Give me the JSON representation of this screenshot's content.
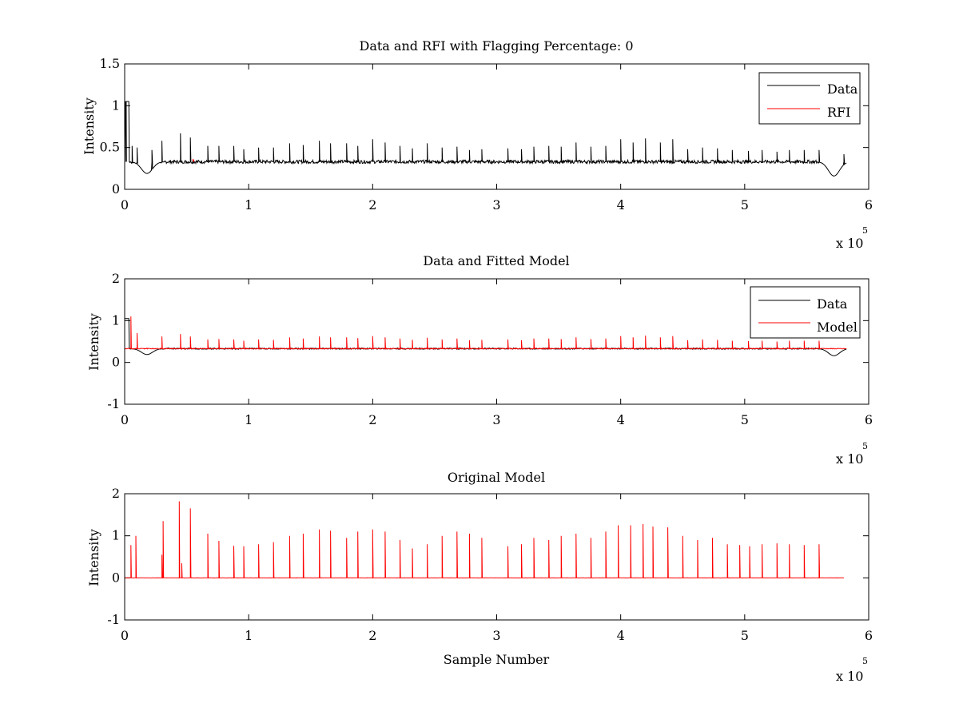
{
  "chart_data": [
    {
      "type": "line",
      "title": "Data and RFI with Flagging Percentage: 0",
      "xlabel": "",
      "ylabel": "Intensity",
      "xlim": [
        0,
        6
      ],
      "ylim": [
        0,
        1.5
      ],
      "x_ticks": [
        "0",
        "1",
        "2",
        "3",
        "4",
        "5",
        "6"
      ],
      "y_ticks": [
        "0",
        "0.5",
        "1",
        "1.5"
      ],
      "x_multiplier": {
        "base": "x 10",
        "exponent": "5"
      },
      "legend": {
        "position": "top-right",
        "entries": [
          "Data",
          "RFI"
        ]
      },
      "colors": {
        "Data": "#000000",
        "RFI": "#ff0000"
      },
      "baseline": 0.33,
      "spike_x": [
        0.01,
        0.06,
        0.1,
        0.22,
        0.3,
        0.45,
        0.53,
        0.67,
        0.76,
        0.88,
        0.96,
        1.08,
        1.2,
        1.33,
        1.44,
        1.57,
        1.66,
        1.79,
        1.88,
        2.0,
        2.1,
        2.22,
        2.32,
        2.44,
        2.56,
        2.68,
        2.78,
        2.88,
        3.09,
        3.2,
        3.3,
        3.42,
        3.52,
        3.64,
        3.76,
        3.88,
        4.0,
        4.1,
        4.2,
        4.32,
        4.42,
        4.54,
        4.66,
        4.78,
        4.9,
        5.03,
        5.14,
        5.26,
        5.36,
        5.48,
        5.6,
        5.8
      ],
      "spike_y": [
        1.05,
        0.52,
        0.5,
        0.47,
        0.58,
        0.67,
        0.62,
        0.52,
        0.52,
        0.52,
        0.48,
        0.5,
        0.5,
        0.55,
        0.53,
        0.58,
        0.55,
        0.55,
        0.52,
        0.6,
        0.56,
        0.52,
        0.49,
        0.55,
        0.5,
        0.51,
        0.47,
        0.48,
        0.49,
        0.48,
        0.51,
        0.52,
        0.51,
        0.56,
        0.51,
        0.52,
        0.6,
        0.56,
        0.61,
        0.56,
        0.6,
        0.48,
        0.5,
        0.49,
        0.47,
        0.46,
        0.47,
        0.45,
        0.47,
        0.47,
        0.47,
        0.42
      ],
      "dips": [
        {
          "x": 0.18,
          "y": 0.19
        },
        {
          "x": 5.72,
          "y": 0.16
        }
      ]
    },
    {
      "type": "line",
      "title": "Data and Fitted Model",
      "xlabel": "",
      "ylabel": "Intensity",
      "xlim": [
        0,
        6
      ],
      "ylim": [
        -1,
        2
      ],
      "x_ticks": [
        "0",
        "1",
        "2",
        "3",
        "4",
        "5",
        "6"
      ],
      "y_ticks": [
        "-1",
        "0",
        "1",
        "2"
      ],
      "x_multiplier": {
        "base": "x 10",
        "exponent": "5"
      },
      "legend": {
        "position": "top-right",
        "entries": [
          "Data",
          "Model"
        ]
      },
      "colors": {
        "Data": "#000000",
        "Model": "#ff0000"
      },
      "baseline": 0.33,
      "spike_x": [
        0.05,
        0.1,
        0.3,
        0.45,
        0.53,
        0.67,
        0.76,
        0.88,
        0.96,
        1.08,
        1.2,
        1.33,
        1.44,
        1.57,
        1.66,
        1.79,
        1.88,
        2.0,
        2.1,
        2.22,
        2.32,
        2.44,
        2.56,
        2.68,
        2.78,
        2.88,
        3.09,
        3.2,
        3.3,
        3.42,
        3.52,
        3.64,
        3.76,
        3.88,
        4.0,
        4.1,
        4.2,
        4.32,
        4.42,
        4.54,
        4.66,
        4.78,
        4.9,
        5.03,
        5.14,
        5.26,
        5.36,
        5.48,
        5.6
      ],
      "spike_y": [
        1.1,
        0.7,
        0.62,
        0.68,
        0.62,
        0.55,
        0.56,
        0.55,
        0.52,
        0.55,
        0.54,
        0.6,
        0.57,
        0.62,
        0.6,
        0.6,
        0.58,
        0.63,
        0.6,
        0.57,
        0.54,
        0.59,
        0.55,
        0.57,
        0.53,
        0.54,
        0.55,
        0.53,
        0.57,
        0.57,
        0.56,
        0.6,
        0.56,
        0.57,
        0.63,
        0.6,
        0.64,
        0.6,
        0.63,
        0.53,
        0.55,
        0.54,
        0.52,
        0.51,
        0.52,
        0.5,
        0.52,
        0.52,
        0.52
      ],
      "data_dips": [
        {
          "x": 0.18,
          "y": 0.19
        },
        {
          "x": 5.72,
          "y": 0.16
        }
      ]
    },
    {
      "type": "line",
      "title": "Original Model",
      "xlabel": "Sample Number",
      "ylabel": "Intensity",
      "xlim": [
        0,
        6
      ],
      "ylim": [
        -1,
        2
      ],
      "x_ticks": [
        "0",
        "1",
        "2",
        "3",
        "4",
        "5",
        "6"
      ],
      "y_ticks": [
        "-1",
        "0",
        "1",
        "2"
      ],
      "x_multiplier": {
        "base": "x 10",
        "exponent": "5"
      },
      "colors": {
        "Model": "#ff0000"
      },
      "baseline": 0,
      "x_end": 5.8,
      "spike_x": [
        0.05,
        0.09,
        0.3,
        0.31,
        0.44,
        0.46,
        0.53,
        0.67,
        0.76,
        0.88,
        0.96,
        1.08,
        1.2,
        1.33,
        1.44,
        1.57,
        1.66,
        1.79,
        1.88,
        2.0,
        2.1,
        2.22,
        2.32,
        2.44,
        2.56,
        2.68,
        2.78,
        2.88,
        3.09,
        3.2,
        3.3,
        3.42,
        3.52,
        3.64,
        3.76,
        3.88,
        3.98,
        4.08,
        4.18,
        4.26,
        4.38,
        4.5,
        4.62,
        4.74,
        4.86,
        4.96,
        5.04,
        5.14,
        5.26,
        5.36,
        5.48,
        5.6
      ],
      "spike_y": [
        0.78,
        1.0,
        0.55,
        1.35,
        1.82,
        0.35,
        1.65,
        1.05,
        0.88,
        0.76,
        0.75,
        0.8,
        0.85,
        1.0,
        1.05,
        1.15,
        1.12,
        0.95,
        1.1,
        1.15,
        1.1,
        0.9,
        0.7,
        0.8,
        1.0,
        1.1,
        1.05,
        0.95,
        0.75,
        0.8,
        0.95,
        0.9,
        1.0,
        1.05,
        0.95,
        1.1,
        1.25,
        1.25,
        1.28,
        1.22,
        1.2,
        1.0,
        0.9,
        0.95,
        0.8,
        0.78,
        0.75,
        0.8,
        0.82,
        0.8,
        0.78,
        0.8
      ]
    }
  ]
}
